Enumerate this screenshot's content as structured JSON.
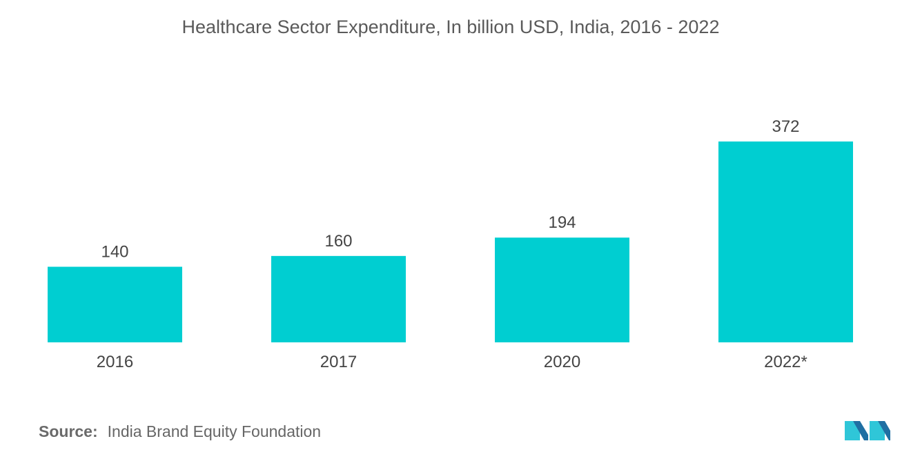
{
  "chart_data": {
    "type": "bar",
    "title": "Healthcare Sector Expenditure, In billion USD, India, 2016 - 2022",
    "categories": [
      "2016",
      "2017",
      "2020",
      "2022*"
    ],
    "values": [
      140,
      160,
      194,
      372
    ],
    "data_labels": [
      "140",
      "160",
      "194",
      "372"
    ],
    "bar_color": "#00CED1",
    "grid": false,
    "ylim": [
      0,
      372
    ]
  },
  "source": {
    "label": "Source:",
    "text": "India Brand Equity Foundation"
  },
  "colors": {
    "logo_dark": "#1f6fa3",
    "logo_light": "#2fc6d8"
  }
}
